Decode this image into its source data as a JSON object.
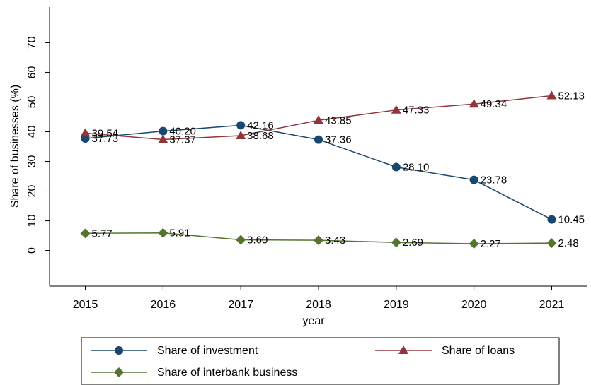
{
  "chart_data": {
    "type": "line",
    "x": [
      2015,
      2016,
      2017,
      2018,
      2019,
      2020,
      2021
    ],
    "xlim": [
      2014.54,
      2021.46
    ],
    "xticks": [
      2015,
      2016,
      2017,
      2018,
      2019,
      2020,
      2021
    ],
    "ylim": [
      -12,
      82
    ],
    "yticks": [
      0,
      10,
      20,
      30,
      40,
      50,
      60,
      70
    ],
    "x_label": "year",
    "y_label": "Share of businesses (%)",
    "grid": false,
    "series": [
      {
        "name": "Share of investment",
        "color": "#1a476f",
        "marker": "circle",
        "values": [
          37.73,
          40.2,
          42.16,
          37.36,
          28.1,
          23.78,
          10.45
        ],
        "value_labels": [
          "37.73",
          "40.20",
          "42.16",
          "37.36",
          "28.10",
          "23.78",
          "10.45"
        ]
      },
      {
        "name": "Share of loans",
        "color": "#90353b",
        "marker": "triangle",
        "values": [
          39.54,
          37.37,
          38.68,
          43.85,
          47.33,
          49.34,
          52.13
        ],
        "value_labels": [
          "39.54",
          "37.37",
          "38.68",
          "43.85",
          "47.33",
          "49.34",
          "52.13"
        ]
      },
      {
        "name": "Share of interbank business",
        "color": "#55752f",
        "marker": "diamond",
        "values": [
          5.77,
          5.91,
          3.6,
          3.43,
          2.69,
          2.27,
          2.48
        ],
        "value_labels": [
          "5.77",
          "5.91",
          "3.60",
          "3.43",
          "2.69",
          "2.27",
          "2.48"
        ]
      }
    ]
  }
}
